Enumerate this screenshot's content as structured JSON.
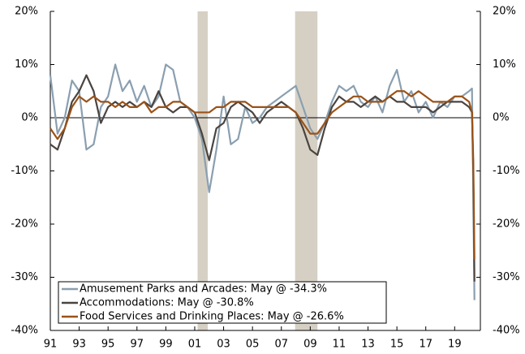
{
  "chart_data": {
    "type": "line",
    "series": [
      {
        "name": "Amusement Parks and Arcades: May @ -34.3%",
        "color": "#8a9fb0",
        "values": [
          8,
          -3,
          0,
          7,
          5,
          -6,
          -5,
          2,
          4,
          10,
          5,
          7,
          3,
          6,
          2,
          4,
          10,
          9,
          3,
          2,
          0,
          -4,
          -14,
          -6,
          4,
          -5,
          -4,
          2,
          -1,
          0,
          2,
          3,
          4,
          5,
          6,
          2,
          -2,
          -4,
          -1,
          3,
          6,
          5,
          6,
          3,
          2,
          4,
          1,
          6,
          9,
          3,
          5,
          1,
          3,
          0,
          3,
          2,
          4,
          4,
          5,
          5.5,
          -15,
          -34.3
        ]
      },
      {
        "name": "Accommodations: May @ -30.8%",
        "color": "#4a4440",
        "values": [
          -5,
          -6,
          -2,
          3,
          5,
          8,
          5,
          -1,
          2,
          3,
          2,
          3,
          2,
          3,
          2,
          5,
          2,
          1,
          2,
          2,
          1,
          -3,
          -8,
          -2,
          -1,
          2,
          3,
          2,
          1,
          -1,
          1,
          2,
          3,
          2,
          1,
          -2,
          -6,
          -7,
          -2,
          2,
          4,
          3,
          3,
          2,
          3,
          4,
          3,
          4,
          3,
          3,
          2,
          2,
          2,
          1,
          2,
          3,
          3,
          3,
          2,
          1,
          -10,
          -30.8
        ]
      },
      {
        "name": "Food Services and Drinking Places: May @ -26.6%",
        "color": "#9a5218",
        "values": [
          -2,
          -4,
          -2,
          2,
          4,
          3,
          4,
          3,
          3,
          2,
          3,
          2,
          2,
          3,
          1,
          2,
          2,
          3,
          3,
          2,
          1,
          1,
          1,
          2,
          2,
          3,
          3,
          3,
          2,
          2,
          2,
          2,
          2,
          2,
          1,
          -1,
          -3,
          -3,
          -1,
          1,
          2,
          3,
          4,
          4,
          3,
          3,
          3,
          4,
          5,
          5,
          4,
          5,
          4,
          3,
          3,
          3,
          4,
          4,
          3,
          1,
          -8,
          -26.6
        ]
      }
    ],
    "x": [
      1991,
      1991.5,
      1992,
      1992.5,
      1993,
      1993.5,
      1994,
      1994.5,
      1995,
      1995.5,
      1996,
      1996.5,
      1997,
      1997.5,
      1998,
      1998.5,
      1999,
      1999.5,
      2000,
      2000.5,
      2001,
      2001.5,
      2002,
      2002.5,
      2003,
      2003.5,
      2004,
      2004.5,
      2005,
      2005.5,
      2006,
      2006.5,
      2007,
      2007.5,
      2008,
      2008.5,
      2009,
      2009.5,
      2010,
      2010.5,
      2011,
      2011.5,
      2012,
      2012.5,
      2013,
      2013.5,
      2014,
      2014.5,
      2015,
      2015.5,
      2016,
      2016.5,
      2017,
      2017.5,
      2018,
      2018.5,
      2019,
      2019.5,
      2020,
      2020.2,
      2020.29,
      2020.37
    ],
    "shaded_ranges": [
      [
        2001.2,
        2001.9
      ],
      [
        2007.95,
        2009.5
      ]
    ],
    "shade_color": "#d6d0c4",
    "xlim": [
      1991,
      2020.78
    ],
    "xticks": [
      {
        "value": 1991,
        "label": "91"
      },
      {
        "value": 1993,
        "label": "93"
      },
      {
        "value": 1995,
        "label": "95"
      },
      {
        "value": 1997,
        "label": "97"
      },
      {
        "value": 1999,
        "label": "99"
      },
      {
        "value": 2001,
        "label": "01"
      },
      {
        "value": 2003,
        "label": "03"
      },
      {
        "value": 2005,
        "label": "05"
      },
      {
        "value": 2007,
        "label": "07"
      },
      {
        "value": 2009,
        "label": "09"
      },
      {
        "value": 2011,
        "label": "11"
      },
      {
        "value": 2013,
        "label": "13"
      },
      {
        "value": 2015,
        "label": "15"
      },
      {
        "value": 2017,
        "label": "17"
      },
      {
        "value": 2019,
        "label": "19"
      }
    ],
    "ylim": [
      -40,
      20
    ],
    "yticks": [
      {
        "value": -40,
        "label": "-40%"
      },
      {
        "value": -30,
        "label": "-30%"
      },
      {
        "value": -20,
        "label": "-20%"
      },
      {
        "value": -10,
        "label": "-10%"
      },
      {
        "value": 0,
        "label": "0%"
      },
      {
        "value": 10,
        "label": "10%"
      },
      {
        "value": 20,
        "label": "20%"
      }
    ],
    "y2lim": [
      -40,
      20
    ],
    "y2ticks": [
      {
        "value": -40,
        "label": "-40%"
      },
      {
        "value": -30,
        "label": "-30%"
      },
      {
        "value": -20,
        "label": "-20%"
      },
      {
        "value": -10,
        "label": "-10%"
      },
      {
        "value": 0,
        "label": "0%"
      },
      {
        "value": 10,
        "label": "10%"
      },
      {
        "value": 20,
        "label": "20%"
      }
    ],
    "legend": "lower left"
  }
}
